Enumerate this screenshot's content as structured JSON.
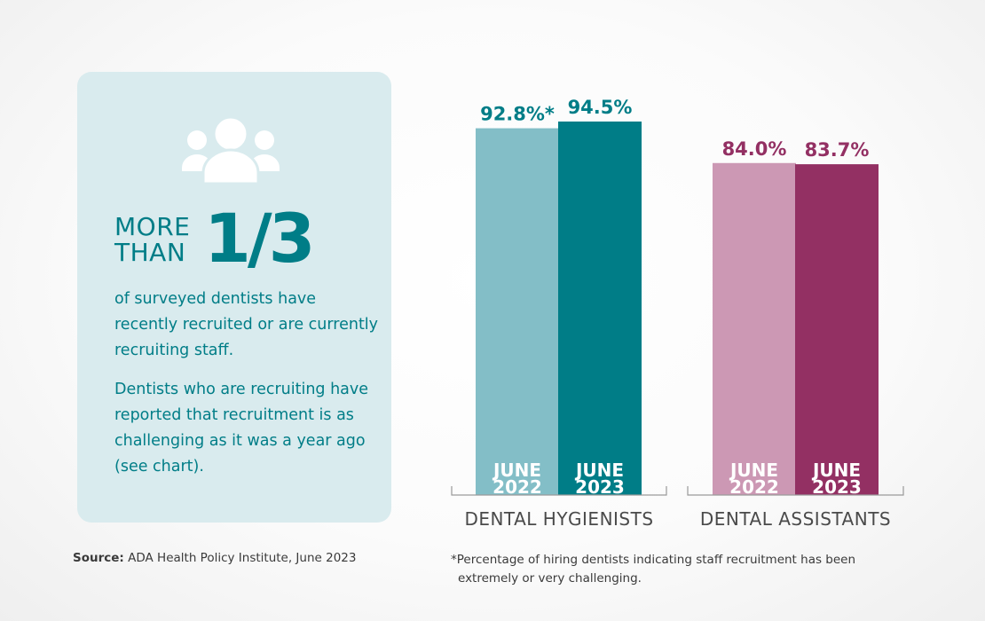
{
  "panel": {
    "headline_line1": "MORE",
    "headline_line2": "THAN",
    "headline_fraction": "1/3",
    "paragraph1": "of surveyed dentists have recently recruited or are currently recruiting staff.",
    "paragraph2": "Dentists who are recruiting have reported that recruitment is as challenging as it was a year ago (see chart).",
    "icon": "people-group-icon"
  },
  "source": {
    "label": "Source:",
    "text": " ADA Health Policy Institute, June 2023"
  },
  "footnote": "*Percentage of hiring dentists indicating staff recruitment has been extremely or very challenging.",
  "colors": {
    "teal_light": "#83bec7",
    "teal_dark": "#007d87",
    "plum_light": "#cc98b4",
    "plum_dark": "#933063",
    "panel_bg": "#d9ebee"
  },
  "chart_data": {
    "type": "bar",
    "groups": [
      "DENTAL HYGIENISTS",
      "DENTAL ASSISTANTS"
    ],
    "categories": [
      "JUNE 2022",
      "JUNE 2023"
    ],
    "series": [
      {
        "group": "DENTAL HYGIENISTS",
        "values": [
          92.8,
          94.5
        ],
        "labels": [
          "92.8%*",
          "94.5%"
        ],
        "colors": [
          "#83bec7",
          "#007d87"
        ],
        "label_color": "#007d87"
      },
      {
        "group": "DENTAL ASSISTANTS",
        "values": [
          84.0,
          83.7
        ],
        "labels": [
          "84.0%",
          "83.7%"
        ],
        "colors": [
          "#cc98b4",
          "#933063"
        ],
        "label_color": "#933063"
      }
    ],
    "ylim": [
      0,
      100
    ],
    "grid": false,
    "legend": "none"
  }
}
